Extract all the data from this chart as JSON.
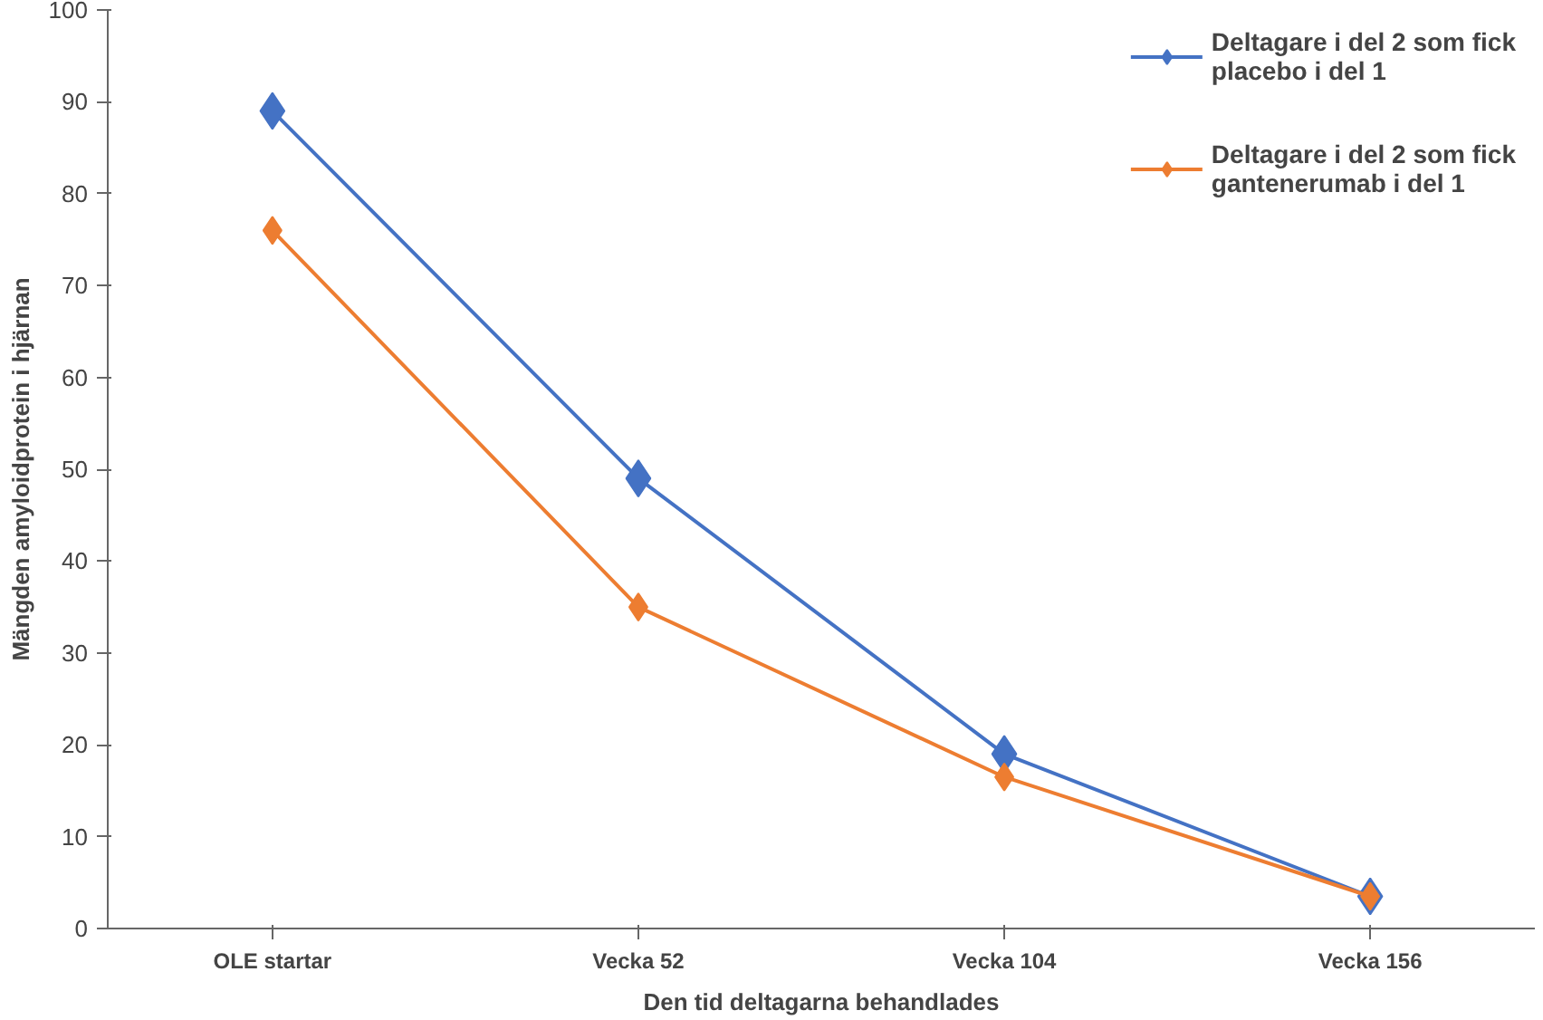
{
  "chart_data": {
    "type": "line",
    "xlabel": "Den tid deltagarna behandlades",
    "ylabel": "Mängden amyloidprotein i hjärnan",
    "categories": [
      "OLE startar",
      "Vecka 52",
      "Vecka 104",
      "Vecka 156"
    ],
    "series": [
      {
        "name": "Deltagare i del 2 som fick\nplacebo i del 1",
        "color": "#4472c4",
        "values": [
          89,
          49,
          19,
          3.5
        ]
      },
      {
        "name": "Deltagare i del 2 som fick\ngantenerumab i del 1",
        "color": "#ed7d31",
        "values": [
          76,
          35,
          16.5,
          3.5
        ]
      }
    ],
    "ylim": [
      0,
      100
    ],
    "yticks": [
      0,
      10,
      20,
      30,
      40,
      50,
      60,
      70,
      80,
      90,
      100
    ],
    "grid": false,
    "legend": "top right",
    "marker": "diamond",
    "line_style": "solid"
  }
}
